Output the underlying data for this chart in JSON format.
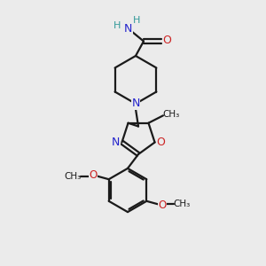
{
  "background_color": "#ebebeb",
  "bond_color": "#1a1a1a",
  "N_color": "#2222cc",
  "O_color": "#cc2222",
  "H_color": "#339999",
  "figsize": [
    3.0,
    3.0
  ],
  "dpi": 100,
  "xlim": [
    0,
    10
  ],
  "ylim": [
    0,
    10
  ]
}
